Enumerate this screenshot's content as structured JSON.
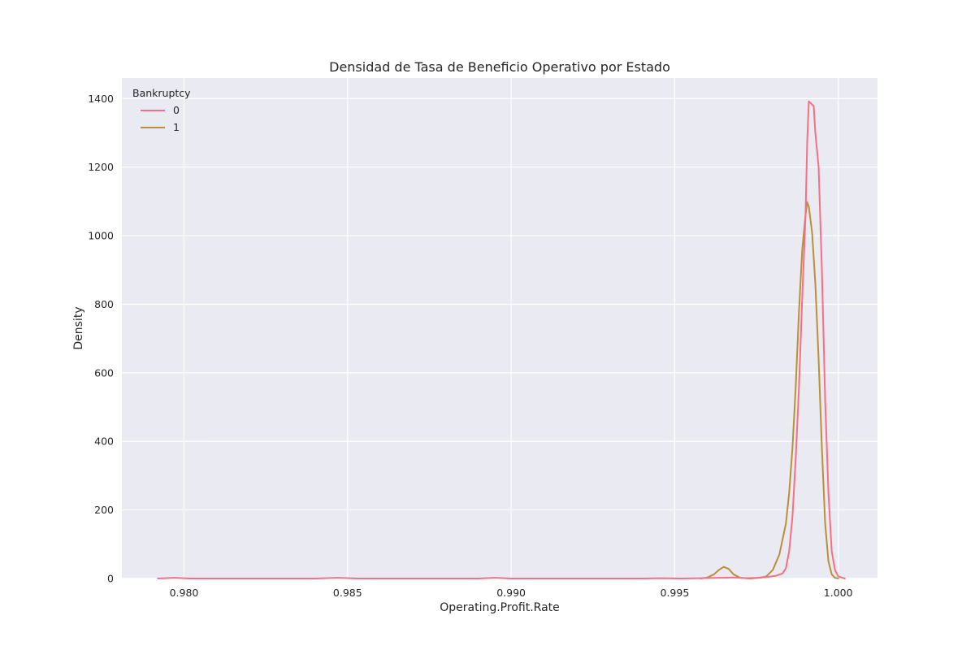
{
  "chart_data": {
    "type": "line",
    "title": "Densidad de Tasa de Beneficio Operativo por Estado",
    "xlabel": "Operating.Profit.Rate",
    "ylabel": "Density",
    "xlim": [
      0.9781,
      1.0012
    ],
    "ylim": [
      0,
      1460
    ],
    "xticks": [
      0.98,
      0.985,
      0.99,
      0.995,
      1.0
    ],
    "xtick_labels": [
      "0.980",
      "0.985",
      "0.990",
      "0.995",
      "1.000"
    ],
    "yticks": [
      0,
      200,
      400,
      600,
      800,
      1000,
      1200,
      1400
    ],
    "ytick_labels": [
      "0",
      "200",
      "400",
      "600",
      "800",
      "1000",
      "1200",
      "1400"
    ],
    "grid": true,
    "legend": {
      "title": "Bankruptcy",
      "position": "top-left"
    },
    "series": [
      {
        "name": "0",
        "color": "#f37086",
        "points": [
          [
            0.9792,
            0
          ],
          [
            0.9797,
            2
          ],
          [
            0.9802,
            0
          ],
          [
            0.984,
            0
          ],
          [
            0.9847,
            2
          ],
          [
            0.9853,
            0
          ],
          [
            0.989,
            0
          ],
          [
            0.9895,
            2
          ],
          [
            0.99,
            0
          ],
          [
            0.994,
            0
          ],
          [
            0.9946,
            1
          ],
          [
            0.9952,
            0
          ],
          [
            0.9958,
            1
          ],
          [
            0.9964,
            2
          ],
          [
            0.9968,
            3
          ],
          [
            0.9972,
            1
          ],
          [
            0.9975,
            2
          ],
          [
            0.9978,
            4
          ],
          [
            0.9981,
            8
          ],
          [
            0.9983,
            15
          ],
          [
            0.9984,
            30
          ],
          [
            0.9985,
            80
          ],
          [
            0.9986,
            180
          ],
          [
            0.9987,
            350
          ],
          [
            0.9988,
            560
          ],
          [
            0.9989,
            820
          ],
          [
            0.999,
            1060
          ],
          [
            0.99905,
            1270
          ],
          [
            0.9991,
            1392
          ],
          [
            0.99925,
            1378
          ],
          [
            0.9993,
            1300
          ],
          [
            0.9994,
            1200
          ],
          [
            0.9995,
            900
          ],
          [
            0.9996,
            520
          ],
          [
            0.9997,
            250
          ],
          [
            0.9998,
            80
          ],
          [
            0.9999,
            25
          ],
          [
            1.0,
            6
          ],
          [
            1.0002,
            0
          ]
        ]
      },
      {
        "name": "1",
        "color": "#b8903a",
        "points": [
          [
            0.9958,
            0
          ],
          [
            0.996,
            3
          ],
          [
            0.9962,
            12
          ],
          [
            0.99635,
            25
          ],
          [
            0.9965,
            34
          ],
          [
            0.99665,
            28
          ],
          [
            0.9968,
            12
          ],
          [
            0.997,
            2
          ],
          [
            0.9973,
            0
          ],
          [
            0.9976,
            2
          ],
          [
            0.9978,
            6
          ],
          [
            0.998,
            25
          ],
          [
            0.9982,
            70
          ],
          [
            0.9984,
            160
          ],
          [
            0.9985,
            250
          ],
          [
            0.9986,
            380
          ],
          [
            0.9987,
            560
          ],
          [
            0.9988,
            780
          ],
          [
            0.9989,
            960
          ],
          [
            0.999,
            1060
          ],
          [
            0.99905,
            1098
          ],
          [
            0.9991,
            1085
          ],
          [
            0.9992,
            1010
          ],
          [
            0.9993,
            860
          ],
          [
            0.9994,
            640
          ],
          [
            0.9995,
            380
          ],
          [
            0.9996,
            160
          ],
          [
            0.9997,
            50
          ],
          [
            0.9998,
            12
          ],
          [
            0.9999,
            2
          ],
          [
            1.0,
            0
          ]
        ]
      }
    ]
  }
}
